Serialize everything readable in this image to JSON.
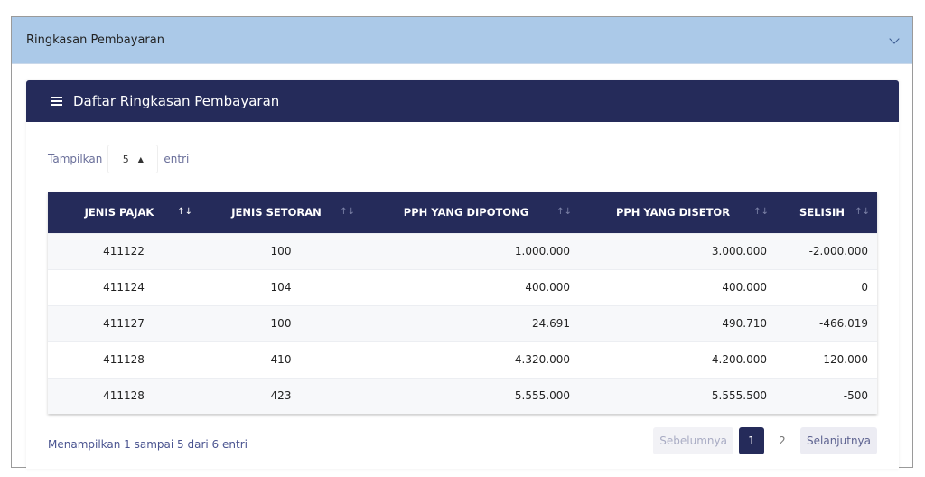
{
  "accordion": {
    "title": "Ringkasan Pembayaran",
    "icon": "chevron-down-icon"
  },
  "card": {
    "title": "Daftar Ringkasan Pembayaran",
    "icon": "list-icon"
  },
  "length": {
    "prefix": "Tampilkan",
    "value": "5",
    "suffix": "entri"
  },
  "table": {
    "columns": [
      "JENIS PAJAK",
      "JENIS SETORAN",
      "PPH YANG DIPOTONG",
      "PPH YANG DISETOR",
      "SELISIH"
    ],
    "rows": [
      [
        "411122",
        "100",
        "1.000.000",
        "3.000.000",
        "-2.000.000"
      ],
      [
        "411124",
        "104",
        "400.000",
        "400.000",
        "0"
      ],
      [
        "411127",
        "100",
        "24.691",
        "490.710",
        "-466.019"
      ],
      [
        "411128",
        "410",
        "4.320.000",
        "4.200.000",
        "120.000"
      ],
      [
        "411128",
        "423",
        "5.555.000",
        "5.555.500",
        "-500"
      ]
    ]
  },
  "footer": {
    "info": "Menampilkan 1 sampai 5 dari 6 entri",
    "prev": "Sebelumnya",
    "pages": [
      "1",
      "2"
    ],
    "current_page": "1",
    "next": "Selanjutnya"
  },
  "colors": {
    "header": "#252b5a",
    "accordion": "#abc9e8"
  }
}
